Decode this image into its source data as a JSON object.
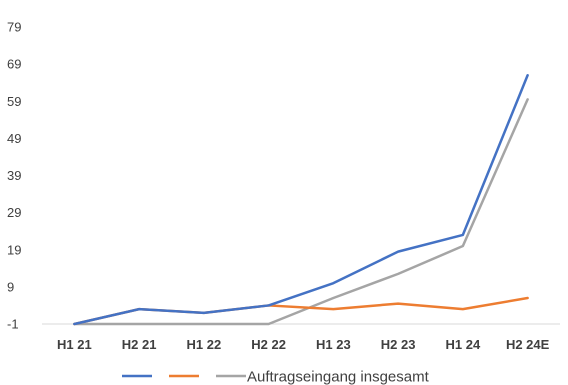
{
  "chart_data": {
    "type": "line",
    "title": "",
    "xlabel": "",
    "ylabel": "",
    "categories": [
      "H1 21",
      "H2 21",
      "H1 22",
      "H2 22",
      "H1 23",
      "H2 23",
      "H1 24",
      "H2 24E"
    ],
    "ylim": [
      -1,
      79
    ],
    "yticks": [
      -1,
      9,
      19,
      29,
      39,
      49,
      59,
      69,
      79
    ],
    "grid": false,
    "legend_position": "bottom",
    "series": [
      {
        "name": "",
        "color": "#4472C4",
        "values": [
          -1,
          3,
          2,
          4,
          10,
          18.5,
          23,
          66
        ]
      },
      {
        "name": "",
        "color": "#ED7D31",
        "values": [
          -1,
          3,
          2,
          4,
          3,
          4.5,
          3,
          6
        ]
      },
      {
        "name": "Auftragseingang insgesamt",
        "color": "#A5A5A5",
        "values": [
          -1,
          -1,
          -1,
          -1,
          6,
          12.5,
          20,
          59.5
        ]
      }
    ]
  }
}
